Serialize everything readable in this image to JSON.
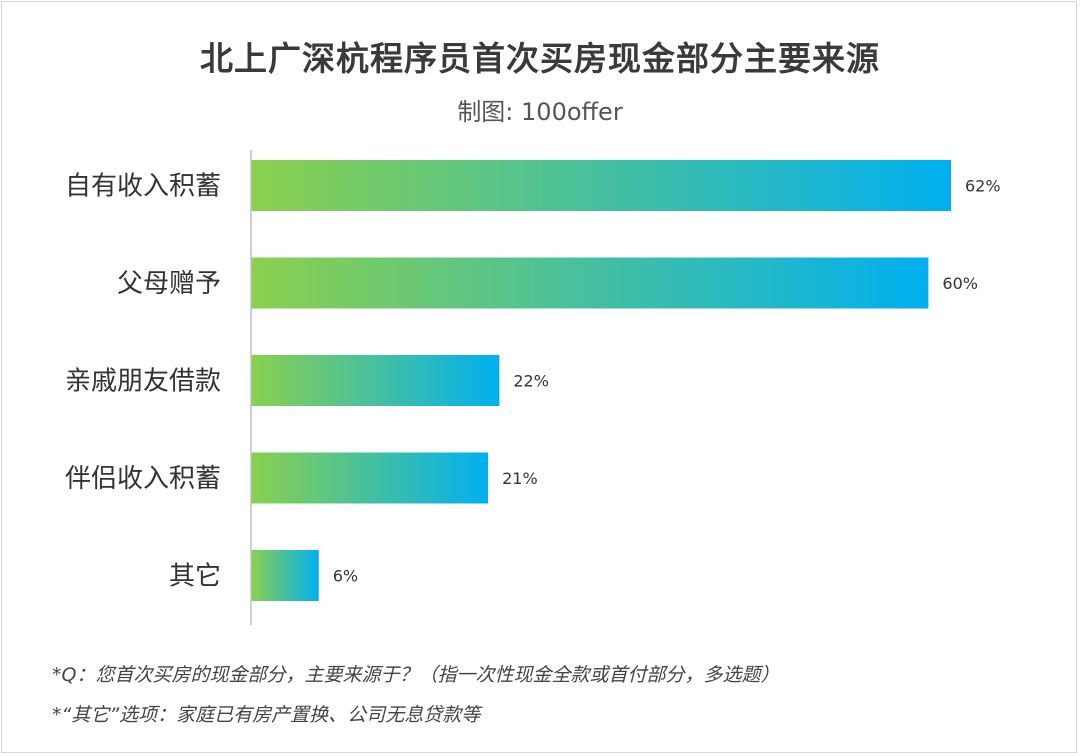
{
  "chart_data": {
    "type": "bar",
    "orientation": "horizontal",
    "title": "北上广深杭程序员首次买房现金部分主要来源",
    "subtitle": "制图: 100offer",
    "categories": [
      "自有收入积蓄",
      "父母赠予",
      "亲戚朋友借款",
      "伴侣收入积蓄",
      "其它"
    ],
    "values": [
      62,
      60,
      22,
      21,
      6
    ],
    "value_labels": [
      "62%",
      "60%",
      "22%",
      "21%",
      "6%"
    ],
    "xlim": [
      0,
      62
    ],
    "grid": false,
    "legend": "none",
    "bar_gradient": [
      "#8bd04e",
      "#00b0f0"
    ]
  },
  "footnotes": [
    "*Q：您首次买房的现金部分，主要来源于？（指一次性现金全款或首付部分，多选题）",
    "*“其它”选项：家庭已有房产置换、公司无息贷款等"
  ],
  "colors": {
    "title": "#3a3a3a",
    "axis": "#bfbfbf",
    "label": "#333333"
  }
}
